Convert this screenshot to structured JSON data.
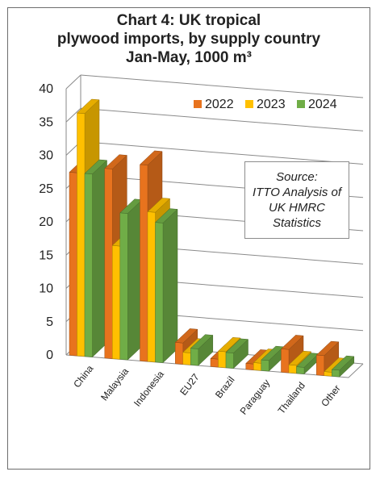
{
  "title_lines": [
    "Chart 4: UK tropical",
    "plywood imports, by supply country",
    "Jan-May, 1000 m³"
  ],
  "source_note": [
    "Source:",
    "ITTO Analysis of",
    "UK HMRC",
    "Statistics"
  ],
  "chart_data": {
    "type": "bar",
    "title": "Chart 4: UK tropical plywood imports, by supply country Jan-May, 1000 m³",
    "categories": [
      "China",
      "Malaysia",
      "Indonesia",
      "EU27",
      "Brazil",
      "Paraguay",
      "Thailand",
      "Other"
    ],
    "series": [
      {
        "name": "2022",
        "color": "#e8731e",
        "values": [
          27.5,
          28.5,
          29.5,
          3.2,
          1.2,
          0.9,
          3.5,
          3.0
        ]
      },
      {
        "name": "2023",
        "color": "#ffc000",
        "values": [
          36.5,
          17.0,
          22.5,
          1.8,
          2.4,
          1.1,
          1.2,
          0.6
        ]
      },
      {
        "name": "2024",
        "color": "#70ad47",
        "values": [
          27.5,
          22.0,
          21.0,
          2.5,
          2.3,
          1.6,
          1.0,
          1.0
        ]
      }
    ],
    "ylim": [
      0,
      40
    ],
    "yticks": [
      "0",
      "5",
      "10",
      "15",
      "20",
      "25",
      "30",
      "35",
      "40"
    ],
    "grid": true,
    "legend_position": "top-right",
    "style": "3d-clustered-column"
  }
}
